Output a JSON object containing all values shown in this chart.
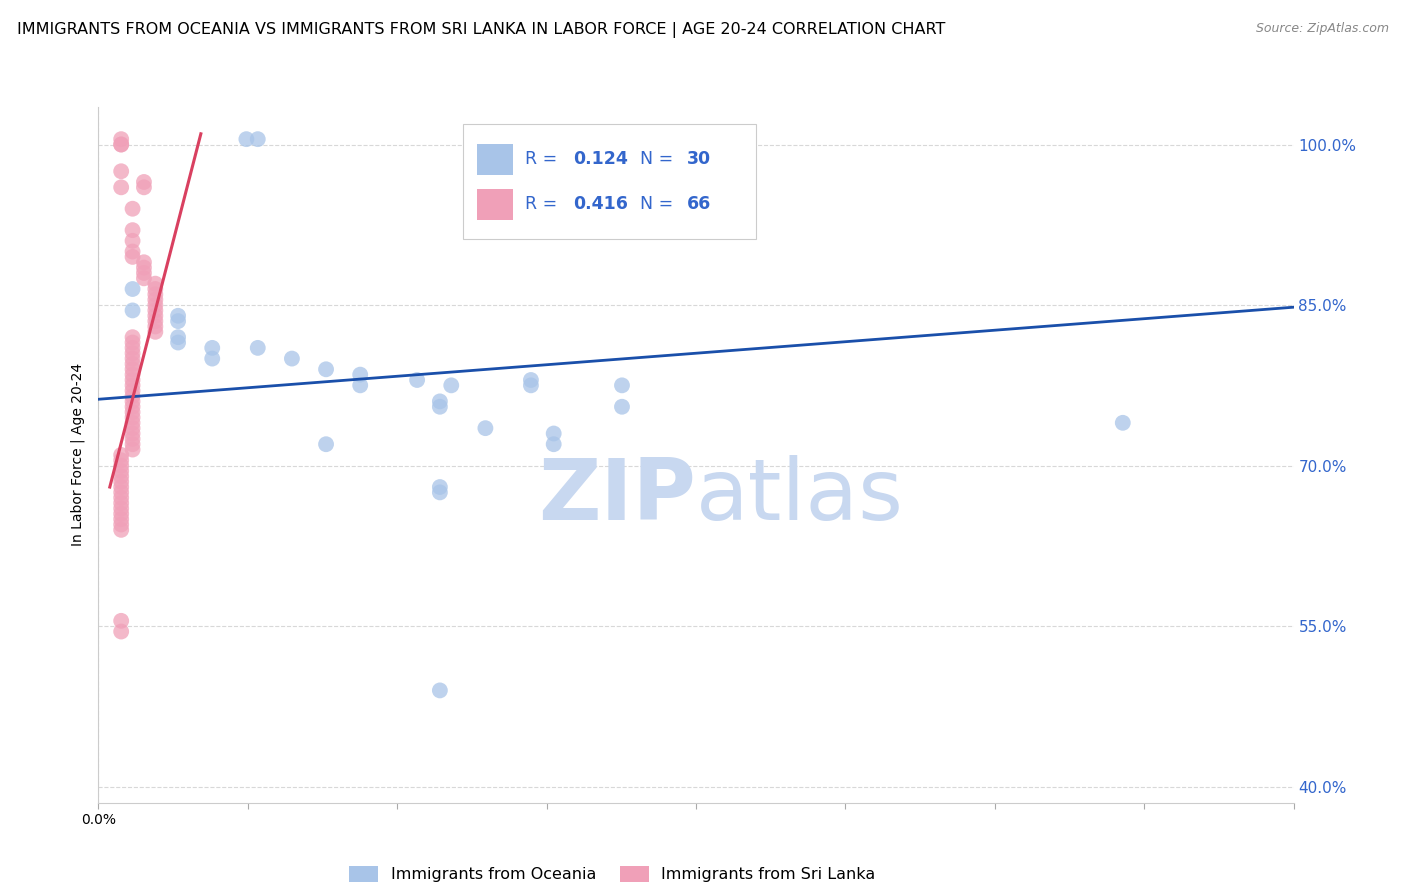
{
  "title": "IMMIGRANTS FROM OCEANIA VS IMMIGRANTS FROM SRI LANKA IN LABOR FORCE | AGE 20-24 CORRELATION CHART",
  "source": "Source: ZipAtlas.com",
  "ylabel": "In Labor Force | Age 20-24",
  "blue_color": "#a8c4e8",
  "pink_color": "#f0a0b8",
  "trend_blue_color": "#1a4faa",
  "trend_pink_color": "#d94060",
  "watermark_zip_color": "#c8d8f0",
  "watermark_atlas_color": "#c8d8f0",
  "right_axis_color": "#3366cc",
  "legend_r_n_color": "#3366cc",
  "ytick_labels": [
    "100.0%",
    "85.0%",
    "70.0%",
    "55.0%",
    "40.0%"
  ],
  "ytick_values": [
    1.0,
    0.85,
    0.7,
    0.55,
    0.4
  ],
  "xmin": 0.0,
  "xmax": 0.105,
  "ymin": 0.385,
  "ymax": 1.035,
  "blue_scatter": [
    [
      0.013,
      1.005
    ],
    [
      0.014,
      1.005
    ],
    [
      0.003,
      0.865
    ],
    [
      0.003,
      0.845
    ],
    [
      0.007,
      0.84
    ],
    [
      0.007,
      0.835
    ],
    [
      0.007,
      0.82
    ],
    [
      0.007,
      0.815
    ],
    [
      0.01,
      0.81
    ],
    [
      0.01,
      0.8
    ],
    [
      0.014,
      0.81
    ],
    [
      0.017,
      0.8
    ],
    [
      0.02,
      0.79
    ],
    [
      0.023,
      0.785
    ],
    [
      0.023,
      0.775
    ],
    [
      0.028,
      0.78
    ],
    [
      0.031,
      0.775
    ],
    [
      0.038,
      0.78
    ],
    [
      0.038,
      0.775
    ],
    [
      0.046,
      0.775
    ],
    [
      0.046,
      0.755
    ],
    [
      0.03,
      0.76
    ],
    [
      0.03,
      0.755
    ],
    [
      0.04,
      0.73
    ],
    [
      0.04,
      0.72
    ],
    [
      0.034,
      0.735
    ],
    [
      0.02,
      0.72
    ],
    [
      0.03,
      0.68
    ],
    [
      0.03,
      0.675
    ],
    [
      0.09,
      0.74
    ],
    [
      0.03,
      0.49
    ]
  ],
  "pink_scatter": [
    [
      0.002,
      1.005
    ],
    [
      0.002,
      1.0
    ],
    [
      0.002,
      1.0
    ],
    [
      0.002,
      0.975
    ],
    [
      0.002,
      0.96
    ],
    [
      0.004,
      0.965
    ],
    [
      0.004,
      0.96
    ],
    [
      0.003,
      0.94
    ],
    [
      0.003,
      0.92
    ],
    [
      0.003,
      0.91
    ],
    [
      0.003,
      0.9
    ],
    [
      0.003,
      0.895
    ],
    [
      0.004,
      0.89
    ],
    [
      0.004,
      0.885
    ],
    [
      0.004,
      0.88
    ],
    [
      0.004,
      0.875
    ],
    [
      0.005,
      0.87
    ],
    [
      0.005,
      0.865
    ],
    [
      0.005,
      0.86
    ],
    [
      0.005,
      0.855
    ],
    [
      0.005,
      0.85
    ],
    [
      0.005,
      0.845
    ],
    [
      0.005,
      0.84
    ],
    [
      0.005,
      0.835
    ],
    [
      0.005,
      0.83
    ],
    [
      0.005,
      0.825
    ],
    [
      0.003,
      0.82
    ],
    [
      0.003,
      0.815
    ],
    [
      0.003,
      0.81
    ],
    [
      0.003,
      0.805
    ],
    [
      0.003,
      0.8
    ],
    [
      0.003,
      0.795
    ],
    [
      0.003,
      0.79
    ],
    [
      0.003,
      0.785
    ],
    [
      0.003,
      0.78
    ],
    [
      0.003,
      0.775
    ],
    [
      0.003,
      0.77
    ],
    [
      0.003,
      0.765
    ],
    [
      0.003,
      0.76
    ],
    [
      0.003,
      0.755
    ],
    [
      0.003,
      0.75
    ],
    [
      0.003,
      0.745
    ],
    [
      0.003,
      0.74
    ],
    [
      0.003,
      0.735
    ],
    [
      0.003,
      0.73
    ],
    [
      0.003,
      0.725
    ],
    [
      0.003,
      0.72
    ],
    [
      0.003,
      0.715
    ],
    [
      0.002,
      0.71
    ],
    [
      0.002,
      0.705
    ],
    [
      0.002,
      0.7
    ],
    [
      0.002,
      0.695
    ],
    [
      0.002,
      0.69
    ],
    [
      0.002,
      0.685
    ],
    [
      0.002,
      0.68
    ],
    [
      0.002,
      0.675
    ],
    [
      0.002,
      0.67
    ],
    [
      0.002,
      0.665
    ],
    [
      0.002,
      0.66
    ],
    [
      0.002,
      0.655
    ],
    [
      0.002,
      0.65
    ],
    [
      0.002,
      0.645
    ],
    [
      0.002,
      0.64
    ],
    [
      0.002,
      0.555
    ],
    [
      0.002,
      0.545
    ]
  ],
  "blue_trend_x": [
    0.0,
    0.105
  ],
  "blue_trend_y": [
    0.762,
    0.848
  ],
  "pink_trend_x": [
    0.001,
    0.009
  ],
  "pink_trend_y": [
    0.68,
    1.01
  ],
  "grid_color": "#d8d8d8",
  "bg_color": "#ffffff",
  "title_fontsize": 11.5,
  "axis_label_fontsize": 10,
  "tick_fontsize": 10
}
